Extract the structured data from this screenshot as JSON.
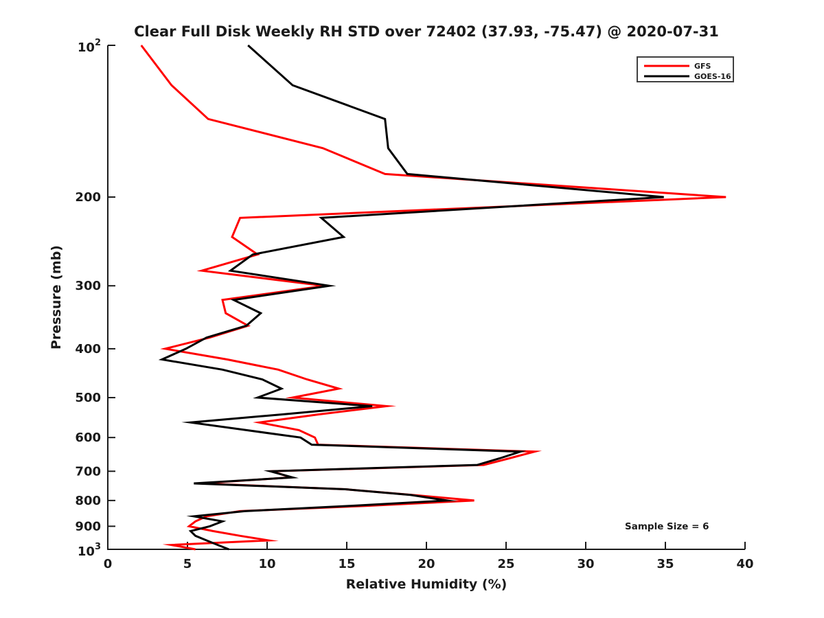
{
  "title": "Clear Full Disk Weekly RH STD over 72402 (37.93, -75.47) @ 2020-07-31",
  "annotation": "Sample Size = 6",
  "colors": {
    "background": "#ffffff",
    "axis": "#1a1a1a",
    "gfs": "#ff0000",
    "goes16": "#000000",
    "legend_border": "#404040"
  },
  "legend": {
    "position": "top-right",
    "entries": [
      {
        "name": "GFS",
        "color": "#ff0000"
      },
      {
        "name": "GOES-16",
        "color": "#000000"
      }
    ]
  },
  "chart_data": {
    "type": "line",
    "title": "Clear Full Disk Weekly RH STD over 72402 (37.93, -75.47) @ 2020-07-31",
    "xlabel": "Relative Humidity (%)",
    "ylabel": "Pressure (mb)",
    "xlim": [
      0,
      40
    ],
    "x_ticks": [
      0,
      5,
      10,
      15,
      20,
      25,
      30,
      35,
      40
    ],
    "y_scale": "log",
    "y_inverted": true,
    "ylim": [
      100,
      1000
    ],
    "y_ticks": [
      {
        "value": 100,
        "base": "10",
        "exp": "2"
      },
      {
        "value": 200,
        "label": "200"
      },
      {
        "value": 300,
        "label": "300"
      },
      {
        "value": 400,
        "label": "400"
      },
      {
        "value": 500,
        "label": "500"
      },
      {
        "value": 600,
        "label": "600"
      },
      {
        "value": 700,
        "label": "700"
      },
      {
        "value": 800,
        "label": "800"
      },
      {
        "value": 900,
        "label": "900"
      },
      {
        "value": 1000,
        "base": "10",
        "exp": "3"
      }
    ],
    "grid": false,
    "legend_position": "top-right",
    "annotation": "Sample Size = 6",
    "pressure_levels_mb": [
      100,
      120,
      140,
      160,
      180,
      200,
      220,
      240,
      260,
      280,
      300,
      320,
      340,
      360,
      380,
      400,
      420,
      440,
      460,
      480,
      500,
      520,
      540,
      560,
      580,
      600,
      620,
      640,
      660,
      680,
      700,
      720,
      740,
      760,
      780,
      800,
      820,
      840,
      860,
      880,
      900,
      920,
      940,
      960,
      980,
      1000
    ],
    "series": [
      {
        "name": "GFS",
        "color": "#ff0000",
        "values": [
          2.1,
          4.0,
          6.3,
          13.5,
          17.4,
          38.8,
          8.3,
          7.8,
          9.4,
          5.9,
          13.6,
          7.2,
          7.4,
          8.8,
          6.4,
          3.6,
          7.5,
          10.7,
          12.5,
          14.5,
          11.6,
          17.5,
          13.2,
          9.5,
          12.0,
          13.0,
          13.2,
          26.8,
          25.2,
          23.6,
          10.3,
          11.5,
          5.8,
          14.9,
          19.1,
          23.0,
          16.2,
          8.3,
          6.2,
          5.5,
          5.1,
          6.6,
          8.3,
          10.1,
          4.0,
          5.5
        ]
      },
      {
        "name": "GOES-16",
        "color": "#000000",
        "values": [
          8.8,
          11.6,
          17.4,
          17.6,
          18.8,
          34.9,
          13.4,
          14.8,
          9.1,
          7.7,
          13.9,
          7.9,
          9.6,
          8.7,
          6.2,
          4.9,
          3.4,
          7.2,
          9.7,
          10.9,
          9.4,
          16.6,
          10.9,
          5.2,
          8.7,
          12.1,
          12.8,
          25.9,
          24.6,
          23.2,
          10.2,
          11.6,
          5.4,
          14.9,
          19.0,
          21.3,
          15.2,
          8.6,
          5.4,
          7.2,
          6.4,
          5.2,
          5.5,
          6.2,
          6.9,
          7.6
        ]
      }
    ]
  }
}
